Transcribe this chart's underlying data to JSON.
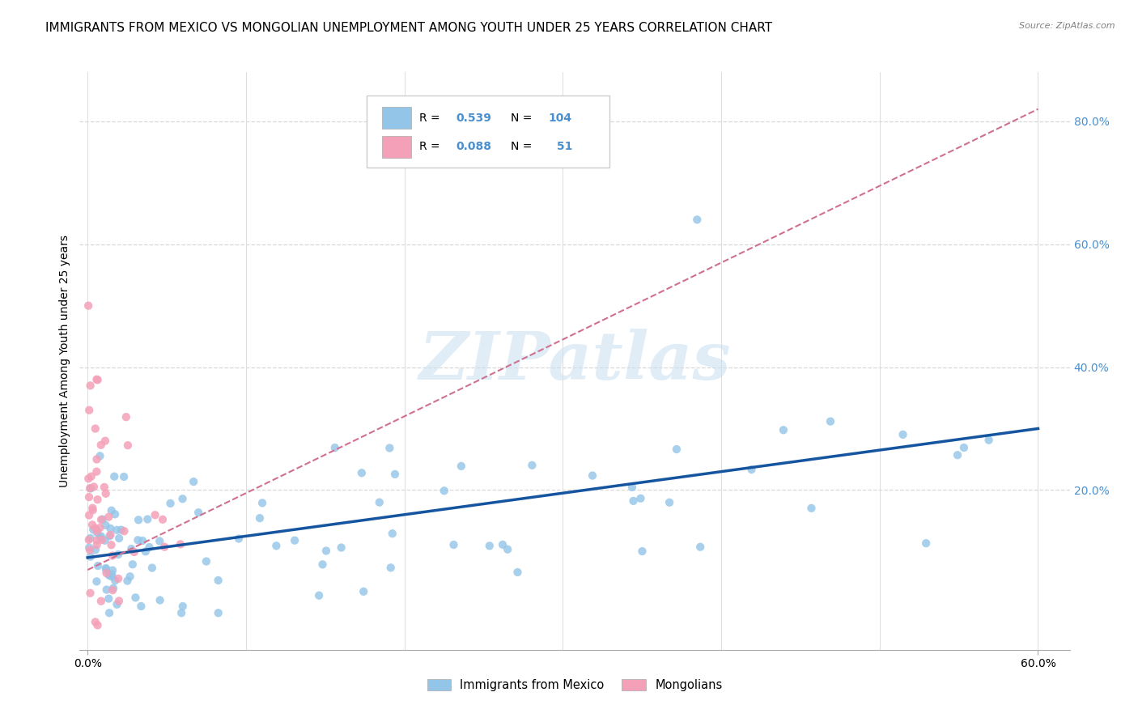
{
  "title": "IMMIGRANTS FROM MEXICO VS MONGOLIAN UNEMPLOYMENT AMONG YOUTH UNDER 25 YEARS CORRELATION CHART",
  "source": "Source: ZipAtlas.com",
  "ylabel": "Unemployment Among Youth under 25 years",
  "xlim": [
    -0.005,
    0.62
  ],
  "ylim": [
    -0.06,
    0.88
  ],
  "xtick_positions": [
    0.0,
    0.6
  ],
  "xticklabels": [
    "0.0%",
    "60.0%"
  ],
  "ytick_positions": [
    0.2,
    0.4,
    0.6,
    0.8
  ],
  "yticklabels_right": [
    "20.0%",
    "40.0%",
    "60.0%",
    "80.0%"
  ],
  "legend_r_blue": "0.539",
  "legend_n_blue": "104",
  "legend_r_pink": "0.088",
  "legend_n_pink": " 51",
  "blue_color": "#92c5e8",
  "blue_line_color": "#1555a0",
  "pink_color": "#f4a0b8",
  "pink_line_color": "#d07090",
  "watermark_text": "ZIPatlas",
  "grid_color": "#d8d8d8",
  "title_fontsize": 11,
  "axis_label_fontsize": 10,
  "tick_fontsize": 10,
  "tick_color": "#4a90d0",
  "blue_trend_x0": 0.0,
  "blue_trend_y0": 0.09,
  "blue_trend_x1": 0.6,
  "blue_trend_y1": 0.3,
  "pink_trend_x0": 0.0,
  "pink_trend_y0": 0.07,
  "pink_trend_x1": 0.6,
  "pink_trend_y1": 0.82
}
